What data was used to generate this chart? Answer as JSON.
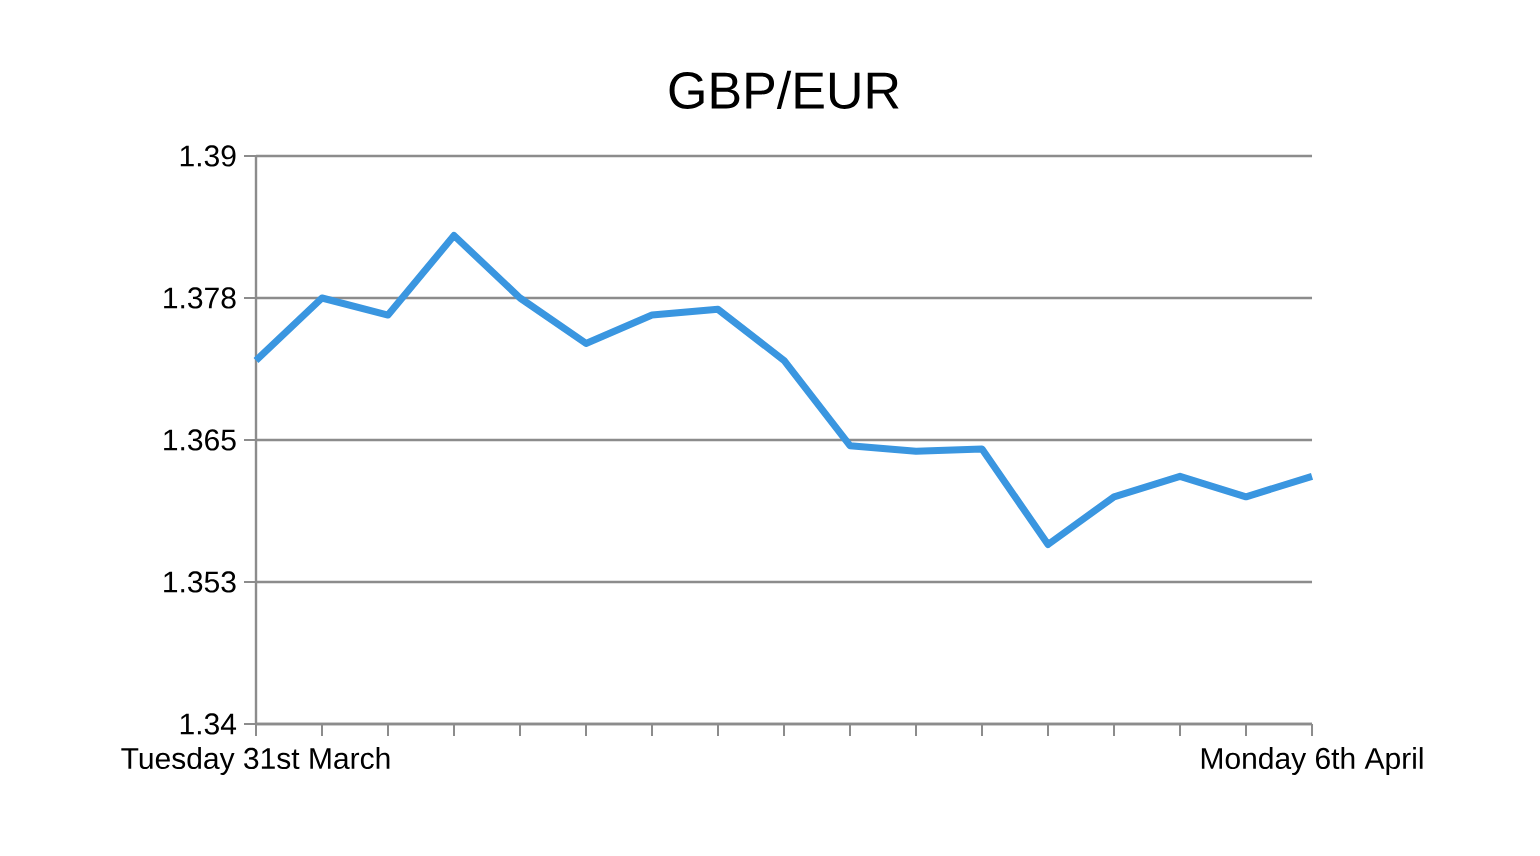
{
  "chart_data": {
    "type": "line",
    "title": "GBP/EUR",
    "categories": [
      "Tuesday 31st March",
      null,
      null,
      null,
      null,
      null,
      null,
      null,
      null,
      null,
      null,
      null,
      null,
      null,
      null,
      null,
      "Monday 6th April"
    ],
    "series": [
      {
        "color": "#3a96e0",
        "values": [
          1.372,
          1.3775,
          1.376,
          1.383,
          1.3775,
          1.3735,
          1.376,
          1.3765,
          1.372,
          1.3645,
          1.364,
          1.3642,
          1.3558,
          1.36,
          1.3618,
          1.36,
          1.3618
        ]
      }
    ],
    "ylim": [
      1.34,
      1.39
    ],
    "yticks": [
      1.34,
      {
        "value": 1.3525,
        "label": "1.353"
      },
      1.365,
      {
        "value": 1.3775,
        "label": "1.378"
      },
      1.39
    ],
    "grid": "y",
    "marker": "none",
    "line_style": "solid"
  }
}
